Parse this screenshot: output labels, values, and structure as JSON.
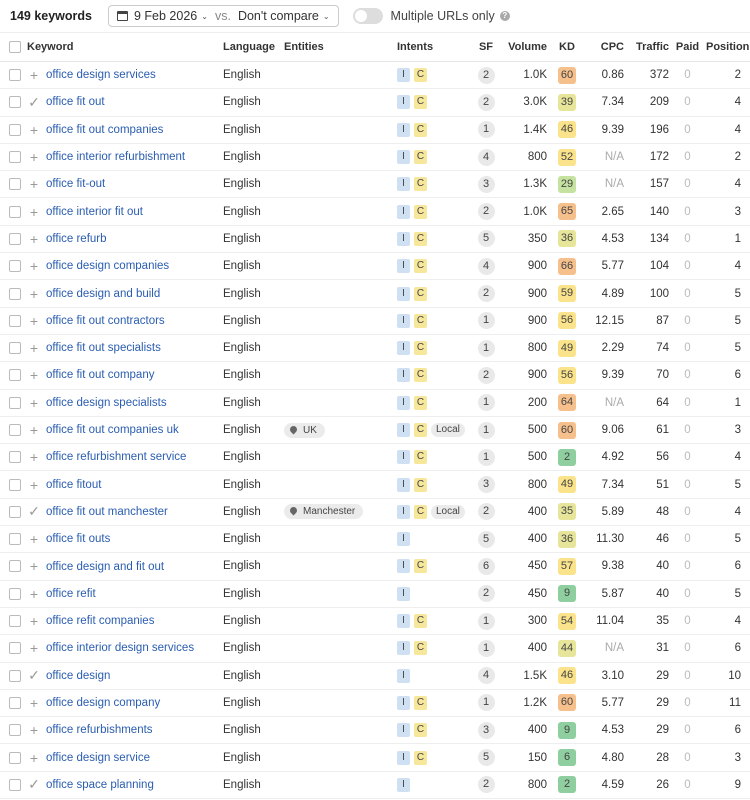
{
  "toolbar": {
    "count": "149 keywords",
    "date": "9 Feb 2026",
    "vs": "vs.",
    "compare": "Don't compare",
    "multiple_urls": "Multiple URLs only",
    "multiple_urls_on": false
  },
  "columns": {
    "keyword": "Keyword",
    "language": "Language",
    "entities": "Entities",
    "intents": "Intents",
    "sf": "SF",
    "volume": "Volume",
    "kd": "KD",
    "cpc": "CPC",
    "traffic": "Traffic",
    "paid": "Paid",
    "position": "Position"
  },
  "kd_colors": {
    "very_easy": "#8fcf9f",
    "easy": "#c5e2a0",
    "possible": "#e6e59a",
    "difficult": "#fae38a",
    "hard": "#f5c08c"
  },
  "rows": [
    {
      "action": "plus",
      "keyword": "office design services",
      "language": "English",
      "entity": "",
      "intents": [
        "I",
        "C"
      ],
      "local": false,
      "sf": "2",
      "volume": "1.0K",
      "kd": "60",
      "cpc": "0.86",
      "traffic": "372",
      "paid": "0",
      "position": "2"
    },
    {
      "action": "check",
      "keyword": "office fit out",
      "language": "English",
      "entity": "",
      "intents": [
        "I",
        "C"
      ],
      "local": false,
      "sf": "2",
      "volume": "3.0K",
      "kd": "39",
      "cpc": "7.34",
      "traffic": "209",
      "paid": "0",
      "position": "4"
    },
    {
      "action": "plus",
      "keyword": "office fit out companies",
      "language": "English",
      "entity": "",
      "intents": [
        "I",
        "C"
      ],
      "local": false,
      "sf": "1",
      "volume": "1.4K",
      "kd": "46",
      "cpc": "9.39",
      "traffic": "196",
      "paid": "0",
      "position": "4"
    },
    {
      "action": "plus",
      "keyword": "office interior refurbishment",
      "language": "English",
      "entity": "",
      "intents": [
        "I",
        "C"
      ],
      "local": false,
      "sf": "4",
      "volume": "800",
      "kd": "52",
      "cpc": "N/A",
      "traffic": "172",
      "paid": "0",
      "position": "2"
    },
    {
      "action": "plus",
      "keyword": "office fit-out",
      "language": "English",
      "entity": "",
      "intents": [
        "I",
        "C"
      ],
      "local": false,
      "sf": "3",
      "volume": "1.3K",
      "kd": "29",
      "cpc": "N/A",
      "traffic": "157",
      "paid": "0",
      "position": "4"
    },
    {
      "action": "plus",
      "keyword": "office interior fit out",
      "language": "English",
      "entity": "",
      "intents": [
        "I",
        "C"
      ],
      "local": false,
      "sf": "2",
      "volume": "1.0K",
      "kd": "65",
      "cpc": "2.65",
      "traffic": "140",
      "paid": "0",
      "position": "3"
    },
    {
      "action": "plus",
      "keyword": "office refurb",
      "language": "English",
      "entity": "",
      "intents": [
        "I",
        "C"
      ],
      "local": false,
      "sf": "5",
      "volume": "350",
      "kd": "36",
      "cpc": "4.53",
      "traffic": "134",
      "paid": "0",
      "position": "1"
    },
    {
      "action": "plus",
      "keyword": "office design companies",
      "language": "English",
      "entity": "",
      "intents": [
        "I",
        "C"
      ],
      "local": false,
      "sf": "4",
      "volume": "900",
      "kd": "66",
      "cpc": "5.77",
      "traffic": "104",
      "paid": "0",
      "position": "4"
    },
    {
      "action": "plus",
      "keyword": "office design and build",
      "language": "English",
      "entity": "",
      "intents": [
        "I",
        "C"
      ],
      "local": false,
      "sf": "2",
      "volume": "900",
      "kd": "59",
      "cpc": "4.89",
      "traffic": "100",
      "paid": "0",
      "position": "5"
    },
    {
      "action": "plus",
      "keyword": "office fit out contractors",
      "language": "English",
      "entity": "",
      "intents": [
        "I",
        "C"
      ],
      "local": false,
      "sf": "1",
      "volume": "900",
      "kd": "56",
      "cpc": "12.15",
      "traffic": "87",
      "paid": "0",
      "position": "5"
    },
    {
      "action": "plus",
      "keyword": "office fit out specialists",
      "language": "English",
      "entity": "",
      "intents": [
        "I",
        "C"
      ],
      "local": false,
      "sf": "1",
      "volume": "800",
      "kd": "49",
      "cpc": "2.29",
      "traffic": "74",
      "paid": "0",
      "position": "5"
    },
    {
      "action": "plus",
      "keyword": "office fit out company",
      "language": "English",
      "entity": "",
      "intents": [
        "I",
        "C"
      ],
      "local": false,
      "sf": "2",
      "volume": "900",
      "kd": "56",
      "cpc": "9.39",
      "traffic": "70",
      "paid": "0",
      "position": "6"
    },
    {
      "action": "plus",
      "keyword": "office design specialists",
      "language": "English",
      "entity": "",
      "intents": [
        "I",
        "C"
      ],
      "local": false,
      "sf": "1",
      "volume": "200",
      "kd": "64",
      "cpc": "N/A",
      "traffic": "64",
      "paid": "0",
      "position": "1"
    },
    {
      "action": "plus",
      "keyword": "office fit out companies uk",
      "language": "English",
      "entity": "UK",
      "intents": [
        "I",
        "C"
      ],
      "local": true,
      "sf": "1",
      "volume": "500",
      "kd": "60",
      "cpc": "9.06",
      "traffic": "61",
      "paid": "0",
      "position": "3"
    },
    {
      "action": "plus",
      "keyword": "office refurbishment service",
      "language": "English",
      "entity": "",
      "intents": [
        "I",
        "C"
      ],
      "local": false,
      "sf": "1",
      "volume": "500",
      "kd": "2",
      "cpc": "4.92",
      "traffic": "56",
      "paid": "0",
      "position": "4"
    },
    {
      "action": "plus",
      "keyword": "office fitout",
      "language": "English",
      "entity": "",
      "intents": [
        "I",
        "C"
      ],
      "local": false,
      "sf": "3",
      "volume": "800",
      "kd": "49",
      "cpc": "7.34",
      "traffic": "51",
      "paid": "0",
      "position": "5"
    },
    {
      "action": "check",
      "keyword": "office fit out manchester",
      "language": "English",
      "entity": "Manchester",
      "intents": [
        "I",
        "C"
      ],
      "local": true,
      "sf": "2",
      "volume": "400",
      "kd": "35",
      "cpc": "5.89",
      "traffic": "48",
      "paid": "0",
      "position": "4"
    },
    {
      "action": "plus",
      "keyword": "office fit outs",
      "language": "English",
      "entity": "",
      "intents": [
        "I"
      ],
      "local": false,
      "sf": "5",
      "volume": "400",
      "kd": "36",
      "cpc": "11.30",
      "traffic": "46",
      "paid": "0",
      "position": "5"
    },
    {
      "action": "plus",
      "keyword": "office design and fit out",
      "language": "English",
      "entity": "",
      "intents": [
        "I",
        "C"
      ],
      "local": false,
      "sf": "6",
      "volume": "450",
      "kd": "57",
      "cpc": "9.38",
      "traffic": "40",
      "paid": "0",
      "position": "6"
    },
    {
      "action": "plus",
      "keyword": "office refit",
      "language": "English",
      "entity": "",
      "intents": [
        "I"
      ],
      "local": false,
      "sf": "2",
      "volume": "450",
      "kd": "9",
      "cpc": "5.87",
      "traffic": "40",
      "paid": "0",
      "position": "5"
    },
    {
      "action": "plus",
      "keyword": "office refit companies",
      "language": "English",
      "entity": "",
      "intents": [
        "I",
        "C"
      ],
      "local": false,
      "sf": "1",
      "volume": "300",
      "kd": "54",
      "cpc": "11.04",
      "traffic": "35",
      "paid": "0",
      "position": "4"
    },
    {
      "action": "plus",
      "keyword": "office interior design services",
      "language": "English",
      "entity": "",
      "intents": [
        "I",
        "C"
      ],
      "local": false,
      "sf": "1",
      "volume": "400",
      "kd": "44",
      "cpc": "N/A",
      "traffic": "31",
      "paid": "0",
      "position": "6"
    },
    {
      "action": "check",
      "keyword": "office design",
      "language": "English",
      "entity": "",
      "intents": [
        "I"
      ],
      "local": false,
      "sf": "4",
      "volume": "1.5K",
      "kd": "46",
      "cpc": "3.10",
      "traffic": "29",
      "paid": "0",
      "position": "10"
    },
    {
      "action": "plus",
      "keyword": "office design company",
      "language": "English",
      "entity": "",
      "intents": [
        "I",
        "C"
      ],
      "local": false,
      "sf": "1",
      "volume": "1.2K",
      "kd": "60",
      "cpc": "5.77",
      "traffic": "29",
      "paid": "0",
      "position": "11"
    },
    {
      "action": "plus",
      "keyword": "office refurbishments",
      "language": "English",
      "entity": "",
      "intents": [
        "I",
        "C"
      ],
      "local": false,
      "sf": "3",
      "volume": "400",
      "kd": "9",
      "cpc": "4.53",
      "traffic": "29",
      "paid": "0",
      "position": "6"
    },
    {
      "action": "plus",
      "keyword": "office design service",
      "language": "English",
      "entity": "",
      "intents": [
        "I",
        "C"
      ],
      "local": false,
      "sf": "5",
      "volume": "150",
      "kd": "6",
      "cpc": "4.80",
      "traffic": "28",
      "paid": "0",
      "position": "3"
    },
    {
      "action": "check",
      "keyword": "office space planning",
      "language": "English",
      "entity": "",
      "intents": [
        "I"
      ],
      "local": false,
      "sf": "2",
      "volume": "800",
      "kd": "2",
      "cpc": "4.59",
      "traffic": "26",
      "paid": "0",
      "position": "9"
    }
  ]
}
